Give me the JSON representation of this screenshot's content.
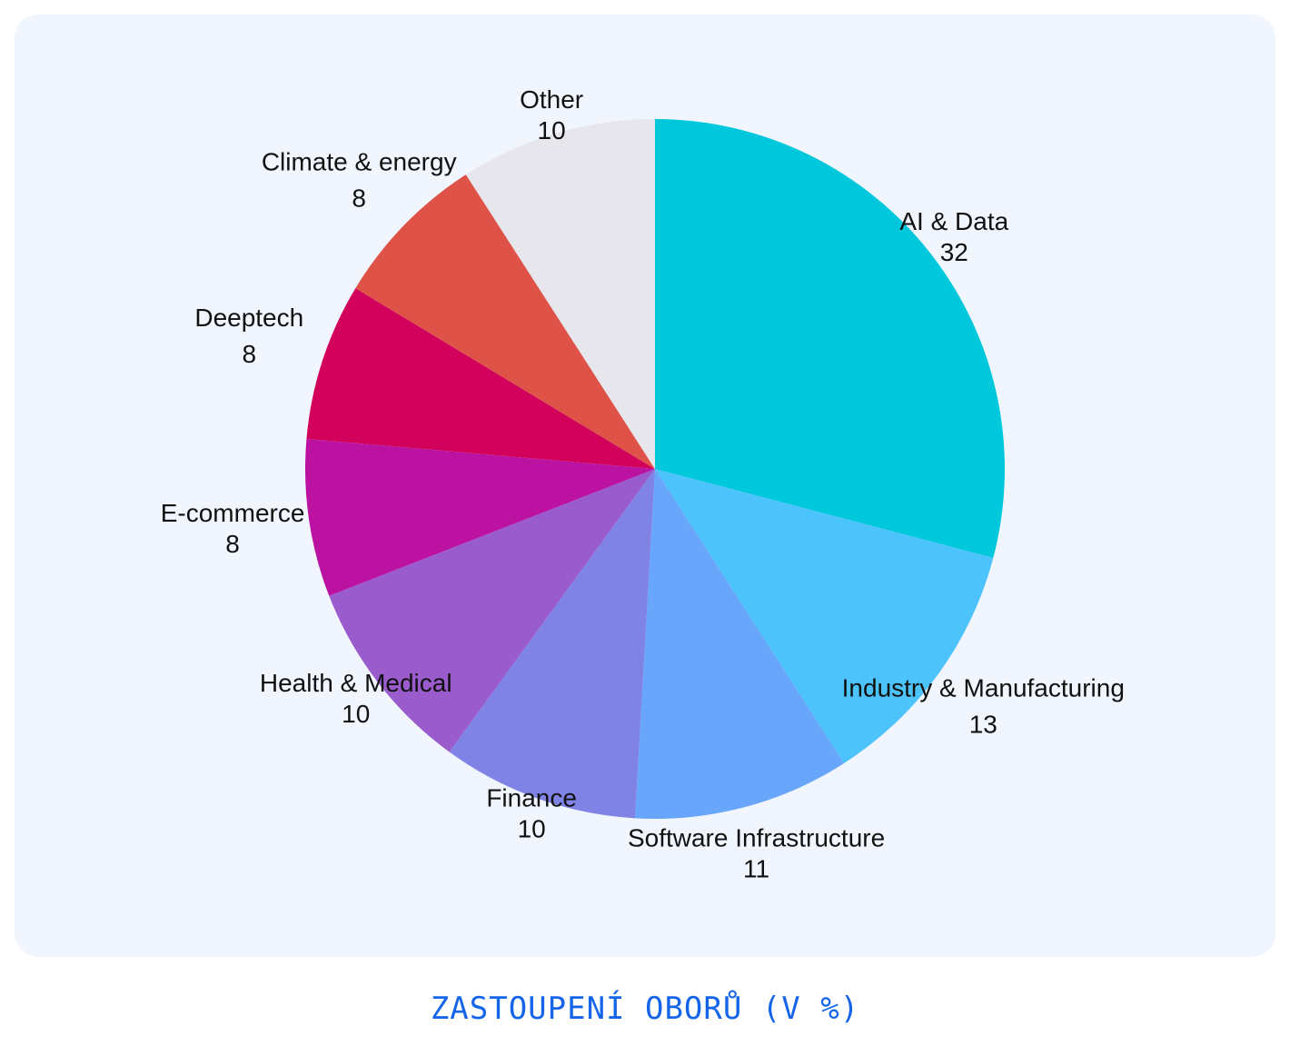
{
  "chart_data": {
    "type": "pie",
    "title": "ZASTOUPENÍ OBORŮ (V %)",
    "start": "top",
    "direction": "clockwise",
    "slices": [
      {
        "label": "AI & Data",
        "value": 32,
        "display": "32",
        "color": "#00c8dc"
      },
      {
        "label": "Industry & Manufacturing",
        "value": 13,
        "display": "13",
        "color": "#4cc3fa"
      },
      {
        "label": "Software Infrastructure",
        "value": 11,
        "display": "11",
        "color": "#67a6fa"
      },
      {
        "label": "Finance",
        "value": 10,
        "display": "10",
        "color": "#8083e6"
      },
      {
        "label": "Health & Medical",
        "value": 10,
        "display": "10",
        "color": "#9a5bcd"
      },
      {
        "label": "E-commerce",
        "value": 8,
        "display": "8",
        "color": "#bb12a2"
      },
      {
        "label": "Deeptech",
        "value": 8,
        "display": "8",
        "color": "#d2025c"
      },
      {
        "label": "Climate & energy",
        "value": 8,
        "display": "8",
        "color": "#df5247"
      },
      {
        "label": "Other",
        "value": 10,
        "display": "10",
        "color": "#e6e6ec"
      }
    ]
  }
}
